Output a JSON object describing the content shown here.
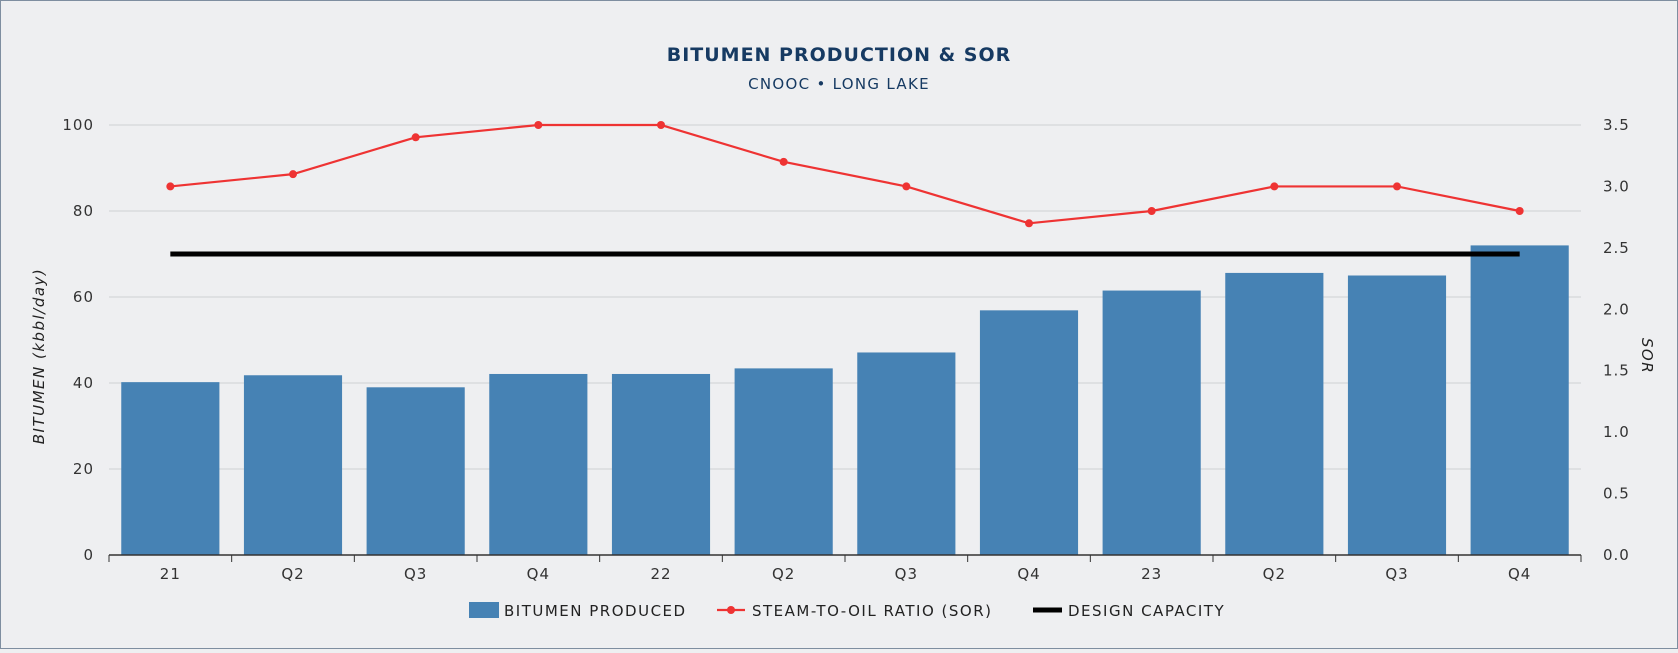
{
  "chart_data": {
    "type": "bar",
    "title": "BITUMEN PRODUCTION & SOR",
    "subtitle": "CNOOC • LONG LAKE",
    "ylabel": "BITUMEN (kbbl/day)",
    "y2label": "SOR",
    "ylim": [
      0,
      100
    ],
    "y2lim": [
      0,
      3.5
    ],
    "y_ticks": [
      "0",
      "20",
      "40",
      "60",
      "80",
      "100"
    ],
    "y2_ticks": [
      "0.0",
      "0.5",
      "1.0",
      "1.5",
      "2.0",
      "2.5",
      "3.0",
      "3.5"
    ],
    "categories": [
      "21",
      "Q2",
      "Q3",
      "Q4",
      "22",
      "Q2",
      "Q3",
      "Q4",
      "23",
      "Q2",
      "Q3",
      "Q4"
    ],
    "grid": true,
    "legend_position": "bottom",
    "series": [
      {
        "name": "BITUMEN PRODUCED",
        "type": "bar",
        "axis": "left",
        "color": "#4682b4",
        "values": [
          40.2,
          41.8,
          39.0,
          42.1,
          42.1,
          43.4,
          47.1,
          56.9,
          61.5,
          65.6,
          65.0,
          72.0
        ]
      },
      {
        "name": "STEAM-TO-OIL RATIO (SOR)",
        "type": "line",
        "axis": "right",
        "color": "#ee3333",
        "values": [
          3.0,
          3.1,
          3.4,
          3.5,
          3.5,
          3.2,
          3.0,
          2.7,
          2.8,
          3.0,
          3.0,
          2.8
        ]
      },
      {
        "name": "DESIGN CAPACITY",
        "type": "line",
        "axis": "left",
        "color": "#000000",
        "values": [
          70,
          70,
          70,
          70,
          70,
          70,
          70,
          70,
          70,
          70,
          70,
          70
        ]
      }
    ]
  }
}
